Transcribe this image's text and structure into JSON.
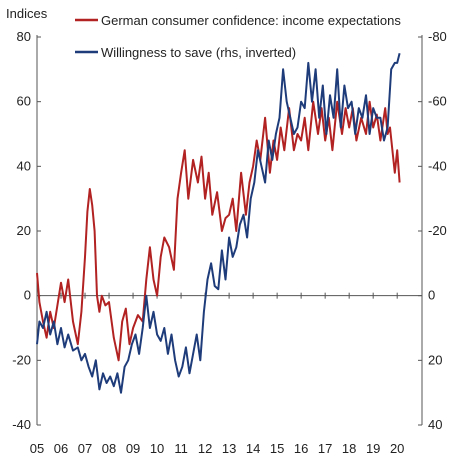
{
  "chart_data": {
    "type": "line",
    "ylabel_left": "Indices",
    "legend_placement": "top",
    "grid": false,
    "x_tick_labels": [
      "05",
      "06",
      "07",
      "08",
      "09",
      "10",
      "11",
      "12",
      "13",
      "14",
      "15",
      "16",
      "17",
      "18",
      "19",
      "20"
    ],
    "xlim": [
      2005,
      2020.2
    ],
    "left_axis": {
      "range": [
        -40,
        80
      ],
      "ticks": [
        -40,
        -20,
        0,
        20,
        40,
        60,
        80
      ]
    },
    "right_axis": {
      "range": [
        40,
        -80
      ],
      "ticks": [
        40,
        20,
        0,
        -20,
        -40,
        -60,
        -80
      ],
      "inverted": true
    },
    "series": [
      {
        "name": "German consumer confidence: income expectations",
        "axis": "left",
        "color": "#b22222",
        "x": [
          2005.0,
          2005.1,
          2005.25,
          2005.4,
          2005.55,
          2005.7,
          2005.85,
          2006.0,
          2006.15,
          2006.3,
          2006.5,
          2006.7,
          2006.85,
          2007.0,
          2007.1,
          2007.2,
          2007.3,
          2007.4,
          2007.5,
          2007.6,
          2007.7,
          2007.85,
          2008.0,
          2008.2,
          2008.4,
          2008.55,
          2008.7,
          2008.85,
          2009.0,
          2009.2,
          2009.4,
          2009.55,
          2009.7,
          2009.85,
          2010.0,
          2010.15,
          2010.3,
          2010.5,
          2010.7,
          2010.85,
          2011.0,
          2011.15,
          2011.3,
          2011.5,
          2011.7,
          2011.85,
          2012.0,
          2012.15,
          2012.3,
          2012.5,
          2012.7,
          2012.85,
          2013.0,
          2013.15,
          2013.3,
          2013.5,
          2013.7,
          2013.85,
          2014.0,
          2014.15,
          2014.3,
          2014.5,
          2014.7,
          2014.85,
          2015.0,
          2015.15,
          2015.3,
          2015.5,
          2015.7,
          2015.85,
          2016.0,
          2016.15,
          2016.3,
          2016.5,
          2016.7,
          2016.85,
          2017.0,
          2017.15,
          2017.3,
          2017.5,
          2017.7,
          2017.85,
          2018.0,
          2018.15,
          2018.3,
          2018.5,
          2018.7,
          2018.85,
          2019.0,
          2019.15,
          2019.3,
          2019.5,
          2019.6,
          2019.7,
          2019.8,
          2019.9,
          2020.0,
          2020.1
        ],
        "values": [
          7,
          -2,
          -8,
          -13,
          -5,
          -10,
          -3,
          4,
          -2,
          5,
          -8,
          -15,
          -5,
          12,
          26,
          33,
          28,
          20,
          0,
          -5,
          0,
          -3,
          -2,
          -13,
          -20,
          -8,
          -4,
          -15,
          -10,
          -6,
          -8,
          5,
          15,
          5,
          0,
          12,
          18,
          15,
          8,
          30,
          38,
          45,
          30,
          42,
          35,
          43,
          30,
          38,
          25,
          32,
          20,
          24,
          25,
          30,
          20,
          38,
          25,
          35,
          40,
          48,
          42,
          55,
          38,
          48,
          42,
          52,
          45,
          58,
          45,
          50,
          48,
          55,
          45,
          60,
          50,
          58,
          48,
          55,
          45,
          60,
          50,
          58,
          52,
          58,
          48,
          55,
          50,
          60,
          52,
          56,
          48,
          58,
          50,
          52,
          45,
          38,
          45,
          35
        ]
      },
      {
        "name": "Willingness to save (rhs, inverted)",
        "axis": "right",
        "color": "#1f3c7a",
        "x": [
          2005.0,
          2005.1,
          2005.25,
          2005.4,
          2005.55,
          2005.7,
          2005.85,
          2006.0,
          2006.15,
          2006.3,
          2006.5,
          2006.7,
          2006.85,
          2007.0,
          2007.15,
          2007.3,
          2007.45,
          2007.6,
          2007.75,
          2007.9,
          2008.05,
          2008.2,
          2008.35,
          2008.5,
          2008.65,
          2008.8,
          2008.95,
          2009.1,
          2009.25,
          2009.4,
          2009.55,
          2009.7,
          2009.85,
          2010.0,
          2010.15,
          2010.3,
          2010.45,
          2010.6,
          2010.75,
          2010.9,
          2011.05,
          2011.2,
          2011.35,
          2011.5,
          2011.65,
          2011.8,
          2011.95,
          2012.1,
          2012.25,
          2012.4,
          2012.55,
          2012.7,
          2012.85,
          2013.0,
          2013.15,
          2013.3,
          2013.45,
          2013.6,
          2013.75,
          2013.9,
          2014.05,
          2014.2,
          2014.35,
          2014.5,
          2014.65,
          2014.8,
          2014.95,
          2015.1,
          2015.25,
          2015.4,
          2015.55,
          2015.7,
          2015.85,
          2016.0,
          2016.15,
          2016.3,
          2016.45,
          2016.6,
          2016.75,
          2016.9,
          2017.05,
          2017.2,
          2017.35,
          2017.5,
          2017.65,
          2017.8,
          2017.95,
          2018.1,
          2018.25,
          2018.4,
          2018.55,
          2018.7,
          2018.85,
          2019.0,
          2019.15,
          2019.3,
          2019.45,
          2019.6,
          2019.75,
          2019.9,
          2020.0,
          2020.1
        ],
        "values": [
          15,
          8,
          10,
          5,
          12,
          8,
          15,
          10,
          16,
          12,
          17,
          16,
          20,
          18,
          22,
          25,
          20,
          29,
          24,
          27,
          25,
          28,
          24,
          30,
          22,
          20,
          15,
          12,
          18,
          10,
          0,
          10,
          5,
          12,
          14,
          10,
          18,
          12,
          20,
          25,
          22,
          16,
          24,
          18,
          12,
          20,
          5,
          -5,
          -10,
          -3,
          -2,
          -14,
          -5,
          -18,
          -12,
          -15,
          -22,
          -25,
          -18,
          -30,
          -35,
          -45,
          -40,
          -35,
          -48,
          -42,
          -50,
          -55,
          -70,
          -60,
          -55,
          -50,
          -52,
          -60,
          -58,
          -72,
          -60,
          -70,
          -55,
          -65,
          -50,
          -62,
          -55,
          -70,
          -52,
          -65,
          -58,
          -60,
          -50,
          -58,
          -55,
          -62,
          -50,
          -58,
          -55,
          -55,
          -48,
          -52,
          -70,
          -72,
          -72,
          -75
        ]
      }
    ]
  }
}
